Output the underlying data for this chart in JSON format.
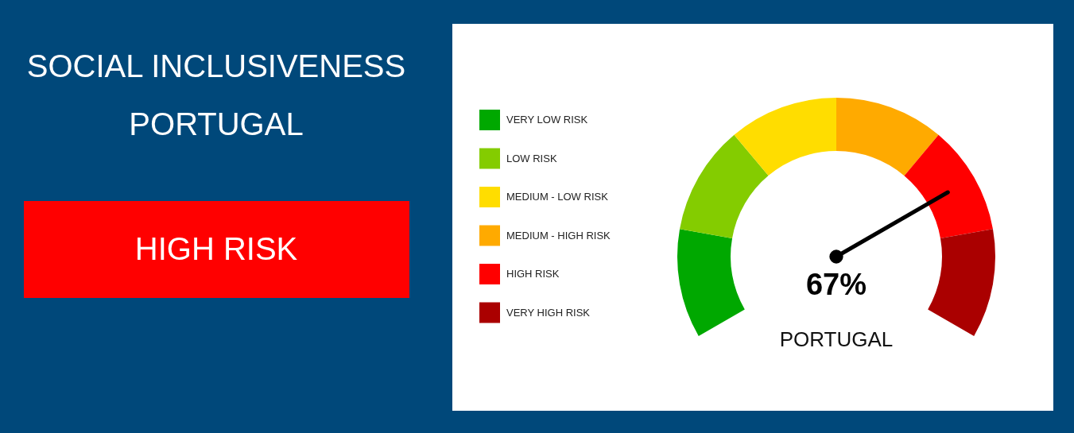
{
  "chart_data": {
    "type": "donut",
    "title": "SOCIAL INCLUSIVENESS",
    "subtitle": "PORTUGAL",
    "categories": [
      "VERY LOW RISK",
      "LOW RISK",
      "MEDIUM - LOW RISK",
      "MEDIUM - HIGH RISK",
      "HIGH RISK",
      "VERY HIGH RISK"
    ],
    "values": [
      16.67,
      16.67,
      16.66,
      16.67,
      16.67,
      16.66
    ],
    "colors": [
      "#00a800",
      "#84cc00",
      "#ffdd00",
      "#ffaa00",
      "#ff0000",
      "#aa0000"
    ],
    "needle": "HIGH RISK",
    "legend": "left",
    "annotations": [
      {
        "text": "HIGH RISK"
      },
      {
        "text": "67%"
      },
      {
        "text": "PORTUGAL"
      }
    ]
  }
}
